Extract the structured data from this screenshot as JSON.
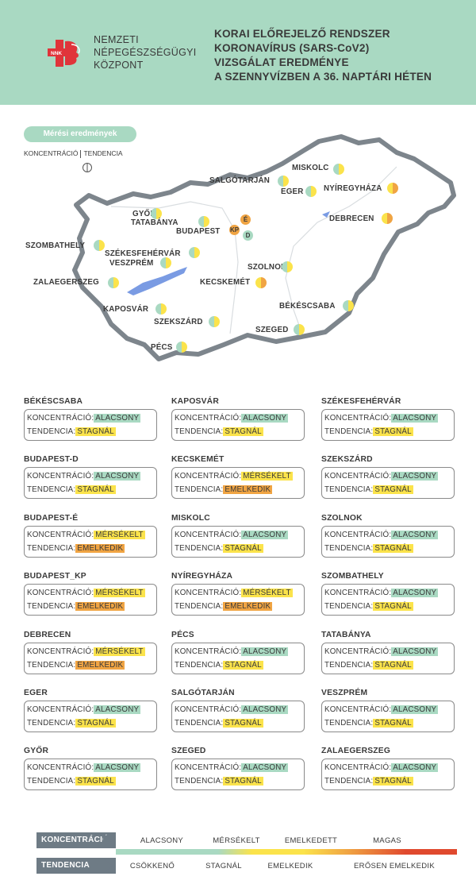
{
  "header": {
    "logo_text": "NNK",
    "org_lines": [
      "NEMZETI",
      "NÉPEGÉSZSÉGÜGYI",
      "KÖZPONT"
    ],
    "title_lines": [
      "KORAI ELŐREJELZŐ RENDSZER",
      "KORONAVÍRUS (SARS-CoV2)",
      "VIZSGÁLAT EREDMÉNYE",
      "A SZENNYVÍZBEN A 36. NAPTÁRI HÉTEN"
    ]
  },
  "map": {
    "badge": "Mérési eredmények",
    "key_left": "KONCENTRÁCIÓ",
    "key_right": "TENDENCIA",
    "cities": [
      "MISKOLC",
      "SALGÓTARJÁN",
      "EGER",
      "NYÍREGYHÁZA",
      "GYŐR",
      "TATABÁNYA",
      "BUDAPEST",
      "DEBRECEN",
      "SZOMBATHELY",
      "SZÉKESFEHÉRVÁR",
      "VESZPRÉM",
      "SZOLNOK",
      "ZALAEGERSZEG",
      "KECSKEMÉT",
      "KAPOSVÁR",
      "BÉKÉSCSABA",
      "SZEKSZÁRD",
      "SZEGED",
      "PÉCS"
    ],
    "budapest_markers": [
      "É",
      "KP",
      "D"
    ]
  },
  "labels": {
    "konc": "KONCENTRÁCIÓ:",
    "tend": "TENDENCIA:"
  },
  "cards": [
    {
      "name": "BÉKÉSCSABA",
      "konc": "ALACSONY",
      "tend": "STAGNÁL"
    },
    {
      "name": "KAPOSVÁR",
      "konc": "ALACSONY",
      "tend": "STAGNÁL"
    },
    {
      "name": "SZÉKESFEHÉRVÁR",
      "konc": "ALACSONY",
      "tend": "STAGNÁL"
    },
    {
      "name": "BUDAPEST-D",
      "konc": "ALACSONY",
      "tend": "STAGNÁL"
    },
    {
      "name": "KECSKEMÉT",
      "konc": "MÉRSÉKELT",
      "tend": "EMELKEDIK"
    },
    {
      "name": "SZEKSZÁRD",
      "konc": "ALACSONY",
      "tend": "STAGNÁL"
    },
    {
      "name": "BUDAPEST-É",
      "konc": "MÉRSÉKELT",
      "tend": "EMELKEDIK"
    },
    {
      "name": "MISKOLC",
      "konc": "ALACSONY",
      "tend": "STAGNÁL"
    },
    {
      "name": "SZOLNOK",
      "konc": "ALACSONY",
      "tend": "STAGNÁL"
    },
    {
      "name": "BUDAPEST_KP",
      "konc": "MÉRSÉKELT",
      "tend": "EMELKEDIK"
    },
    {
      "name": "NYÍREGYHÁZA",
      "konc": "MÉRSÉKELT",
      "tend": "EMELKEDIK"
    },
    {
      "name": "SZOMBATHELY",
      "konc": "ALACSONY",
      "tend": "STAGNÁL"
    },
    {
      "name": "DEBRECEN",
      "konc": "MÉRSÉKELT",
      "tend": "EMELKEDIK"
    },
    {
      "name": "PÉCS",
      "konc": "ALACSONY",
      "tend": "STAGNÁL"
    },
    {
      "name": "TATABÁNYA",
      "konc": "ALACSONY",
      "tend": "STAGNÁL"
    },
    {
      "name": "EGER",
      "konc": "ALACSONY",
      "tend": "STAGNÁL"
    },
    {
      "name": "SALGÓTARJÁN",
      "konc": "ALACSONY",
      "tend": "STAGNÁL"
    },
    {
      "name": "VESZPRÉM",
      "konc": "ALACSONY",
      "tend": "STAGNÁL"
    },
    {
      "name": "GYŐR",
      "konc": "ALACSONY",
      "tend": "STAGNÁL"
    },
    {
      "name": "SZEGED",
      "konc": "ALACSONY",
      "tend": "STAGNÁL"
    },
    {
      "name": "ZALAEGERSZEG",
      "konc": "ALACSONY",
      "tend": "STAGNÁL"
    }
  ],
  "legend": {
    "konc_label": "KONCENTRÁCIÓ",
    "tend_label": "TENDENCIA",
    "konc_items": [
      "ALACSONY",
      "MÉRSÉKELT",
      "EMELKEDETT",
      "MAGAS"
    ],
    "tend_items": [
      "CSÖKKENŐ",
      "STAGNÁL",
      "EMELKEDIK",
      "ERŐSEN EMELKEDIK"
    ]
  },
  "colors": {
    "header_bg": "#a9d9c2",
    "alacsony": "#a9d9c2",
    "mersekelt": "#fbe34b",
    "emelkedett": "#f0a443",
    "magas": "#e0492e",
    "legend_label_bg": "#6e7b85",
    "logo_red": "#e0343a"
  }
}
